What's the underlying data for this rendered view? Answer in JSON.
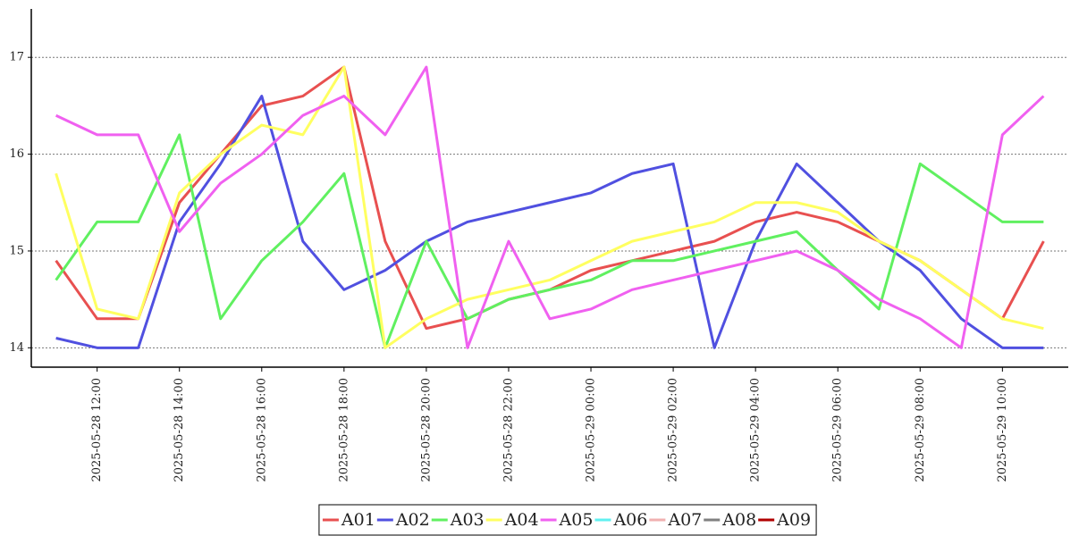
{
  "chart_data": {
    "type": "line",
    "x": [
      "2025-05-28 11:00",
      "2025-05-28 12:00",
      "2025-05-28 13:00",
      "2025-05-28 14:00",
      "2025-05-28 15:00",
      "2025-05-28 16:00",
      "2025-05-28 17:00",
      "2025-05-28 18:00",
      "2025-05-28 19:00",
      "2025-05-28 20:00",
      "2025-05-28 21:00",
      "2025-05-28 22:00",
      "2025-05-28 23:00",
      "2025-05-29 00:00",
      "2025-05-29 01:00",
      "2025-05-29 02:00",
      "2025-05-29 03:00",
      "2025-05-29 04:00",
      "2025-05-29 05:00",
      "2025-05-29 06:00",
      "2025-05-29 07:00",
      "2025-05-29 08:00",
      "2025-05-29 09:00",
      "2025-05-29 10:00",
      "2025-05-29 11:00"
    ],
    "series": [
      {
        "name": "A01",
        "color": "#e85050",
        "values": [
          14.9,
          14.3,
          14.3,
          15.5,
          16.0,
          16.5,
          16.6,
          16.9,
          15.1,
          14.2,
          14.3,
          14.5,
          14.6,
          14.8,
          14.9,
          15.0,
          15.1,
          15.3,
          15.4,
          15.3,
          15.1,
          14.9,
          14.6,
          14.3,
          15.1
        ]
      },
      {
        "name": "A02",
        "color": "#5050e0",
        "values": [
          14.1,
          14.0,
          14.0,
          15.3,
          15.9,
          16.6,
          15.1,
          14.6,
          14.8,
          15.1,
          15.3,
          15.4,
          15.5,
          15.6,
          15.8,
          15.9,
          14.0,
          15.1,
          15.9,
          15.5,
          15.1,
          14.8,
          14.3,
          14.0,
          14.0
        ]
      },
      {
        "name": "A03",
        "color": "#60f060",
        "values": [
          14.7,
          15.3,
          15.3,
          16.2,
          14.3,
          14.9,
          15.3,
          15.8,
          14.0,
          15.1,
          14.3,
          14.5,
          14.6,
          14.7,
          14.9,
          14.9,
          15.0,
          15.1,
          15.2,
          14.8,
          14.4,
          15.9,
          15.6,
          15.3,
          15.3
        ]
      },
      {
        "name": "A04",
        "color": "#ffff60",
        "values": [
          15.8,
          14.4,
          14.3,
          15.6,
          16.0,
          16.3,
          16.2,
          16.9,
          14.0,
          14.3,
          14.5,
          14.6,
          14.7,
          14.9,
          15.1,
          15.2,
          15.3,
          15.5,
          15.5,
          15.4,
          15.1,
          14.9,
          14.6,
          14.3,
          14.2
        ]
      },
      {
        "name": "A05",
        "color": "#f060f0",
        "values": [
          16.4,
          16.2,
          16.2,
          15.2,
          15.7,
          16.0,
          16.4,
          16.6,
          16.2,
          16.9,
          14.0,
          15.1,
          14.3,
          14.4,
          14.6,
          14.7,
          14.8,
          14.9,
          15.0,
          14.8,
          14.5,
          14.3,
          14.0,
          16.2,
          16.6
        ]
      },
      {
        "name": "A06",
        "color": "#60f0f0",
        "values": [
          null,
          null,
          null,
          null,
          null,
          null,
          null,
          null,
          null,
          null,
          null,
          null,
          null,
          null,
          null,
          null,
          null,
          null,
          null,
          null,
          null,
          null,
          null,
          null,
          null
        ]
      },
      {
        "name": "A07",
        "color": "#f0b0b0",
        "values": [
          null,
          null,
          null,
          null,
          null,
          null,
          null,
          null,
          null,
          null,
          null,
          null,
          null,
          null,
          null,
          null,
          null,
          null,
          null,
          null,
          null,
          null,
          null,
          null,
          null
        ]
      },
      {
        "name": "A08",
        "color": "#808080",
        "values": [
          null,
          null,
          null,
          null,
          null,
          null,
          null,
          null,
          null,
          null,
          null,
          null,
          null,
          null,
          null,
          null,
          null,
          null,
          null,
          null,
          null,
          null,
          null,
          null,
          null
        ]
      },
      {
        "name": "A09",
        "color": "#b00000",
        "values": [
          null,
          null,
          null,
          null,
          null,
          null,
          null,
          null,
          null,
          null,
          null,
          null,
          null,
          null,
          null,
          null,
          null,
          null,
          null,
          null,
          null,
          null,
          null,
          null,
          null
        ]
      }
    ],
    "xlim": [
      "2025-05-28 10:24",
      "2025-05-29 11:36"
    ],
    "xticks": [
      "2025-05-28 12:00",
      "2025-05-28 14:00",
      "2025-05-28 16:00",
      "2025-05-28 18:00",
      "2025-05-28 20:00",
      "2025-05-28 22:00",
      "2025-05-29 00:00",
      "2025-05-29 02:00",
      "2025-05-29 04:00",
      "2025-05-29 06:00",
      "2025-05-29 08:00",
      "2025-05-29 10:00"
    ],
    "ylim": [
      13.8,
      17.5
    ],
    "yticks": [
      14,
      15,
      16,
      17
    ],
    "grid": true,
    "legend": "bottom"
  }
}
